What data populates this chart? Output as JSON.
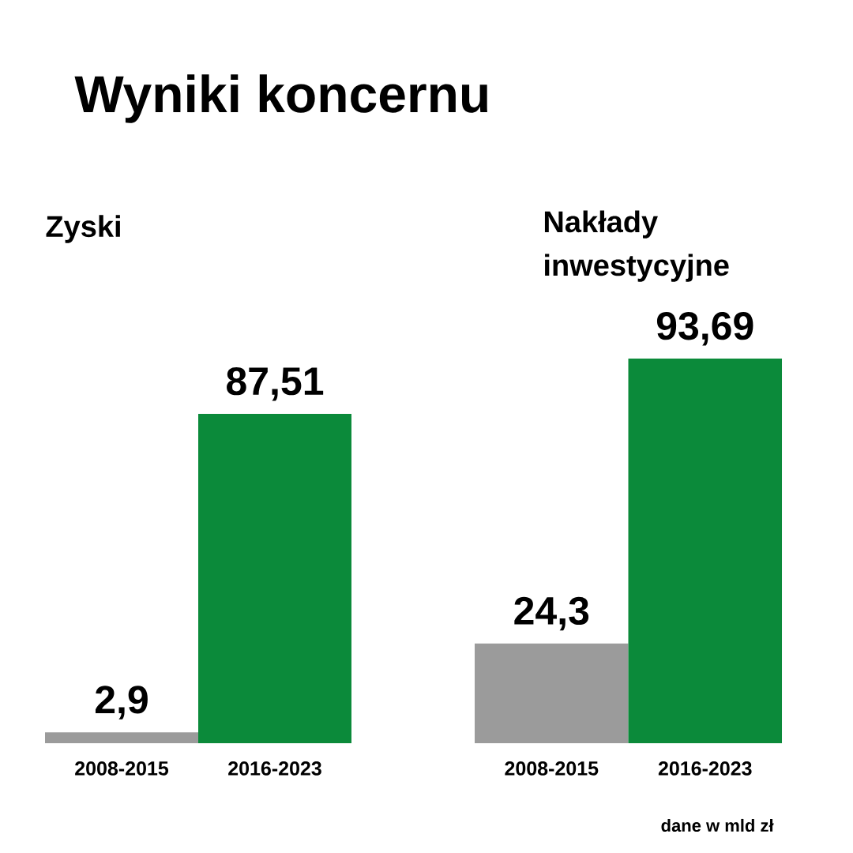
{
  "chart_data": [
    {
      "type": "bar",
      "title": "Wyniki koncernu",
      "subtitle": "Zyski",
      "categories": [
        "2008-2015",
        "2016-2023"
      ],
      "values": [
        2.9,
        87.51
      ],
      "colors": [
        "#9b9b9b",
        "#0b8a3a"
      ],
      "value_labels": [
        "2,9",
        "87,51"
      ],
      "tick_labels": "x"
    },
    {
      "type": "bar",
      "title": "Nakłady inwestycyjne",
      "categories": [
        "2008-2015",
        "2016-2023"
      ],
      "values": [
        24.3,
        93.69
      ],
      "colors": [
        "#9b9b9b",
        "#0b8a3a"
      ],
      "value_labels": [
        "24,3",
        "93,69"
      ],
      "tick_labels": "x",
      "annotations": [
        "dane w mld zł"
      ]
    }
  ]
}
